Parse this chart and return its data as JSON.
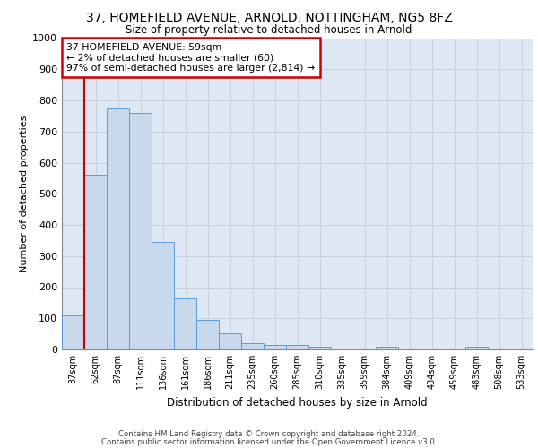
{
  "title_line1": "37, HOMEFIELD AVENUE, ARNOLD, NOTTINGHAM, NG5 8FZ",
  "title_line2": "Size of property relative to detached houses in Arnold",
  "xlabel": "Distribution of detached houses by size in Arnold",
  "ylabel": "Number of detached properties",
  "bar_labels": [
    "37sqm",
    "62sqm",
    "87sqm",
    "111sqm",
    "136sqm",
    "161sqm",
    "186sqm",
    "211sqm",
    "235sqm",
    "260sqm",
    "285sqm",
    "310sqm",
    "335sqm",
    "359sqm",
    "384sqm",
    "409sqm",
    "434sqm",
    "459sqm",
    "483sqm",
    "508sqm",
    "533sqm"
  ],
  "bar_values": [
    110,
    560,
    775,
    760,
    345,
    163,
    96,
    52,
    20,
    15,
    15,
    10,
    0,
    0,
    10,
    0,
    0,
    0,
    10,
    0,
    0
  ],
  "bar_color": "#c8d9ee",
  "bar_edge_color": "#5b9bd5",
  "vline_x_index": 1,
  "annotation_line1": "37 HOMEFIELD AVENUE: 59sqm",
  "annotation_line2": "← 2% of detached houses are smaller (60)",
  "annotation_line3": "97% of semi-detached houses are larger (2,814) →",
  "vline_color": "#cc0000",
  "annotation_box_edgecolor": "#cc0000",
  "ylim": [
    0,
    1000
  ],
  "yticks": [
    0,
    100,
    200,
    300,
    400,
    500,
    600,
    700,
    800,
    900,
    1000
  ],
  "grid_color": "#c8d0dc",
  "bg_color": "#dde8f4",
  "footer_line1": "Contains HM Land Registry data © Crown copyright and database right 2024.",
  "footer_line2": "Contains public sector information licensed under the Open Government Licence v3.0."
}
